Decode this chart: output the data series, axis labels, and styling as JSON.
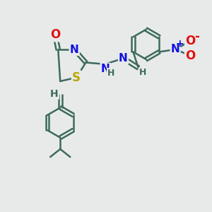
{
  "bg_color": "#e8eaea",
  "bond_color": "#3d6b5e",
  "bond_width": 1.8,
  "atom_colors": {
    "O": "#e01010",
    "N": "#1010e0",
    "S": "#b8a800",
    "H": "#3d6b5e",
    "C": "#3d6b5e",
    "NO2_N": "#1010e0",
    "NO2_O": "#e01010"
  }
}
